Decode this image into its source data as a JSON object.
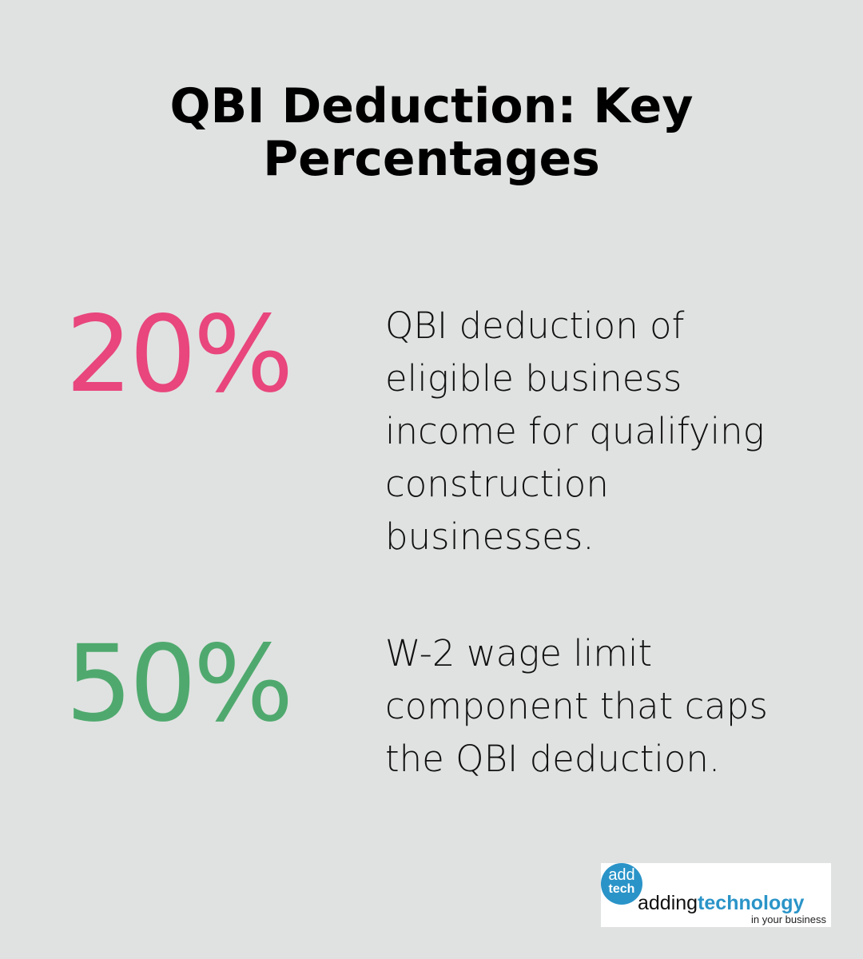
{
  "title": "QBI Deduction: Key Percentages",
  "stats": [
    {
      "value": "20%",
      "color": "#e8467c",
      "description": "QBI deduction of eligible business income for qualifying construction businesses."
    },
    {
      "value": "50%",
      "color": "#4fa96e",
      "description": "W-2 wage limit component that caps the QBI deduction."
    }
  ],
  "logo": {
    "circle_top": "add",
    "circle_bottom": "tech",
    "brand_light": "adding",
    "brand_bold": "technology",
    "tagline": "in your business",
    "accent": "#2a94c8"
  }
}
